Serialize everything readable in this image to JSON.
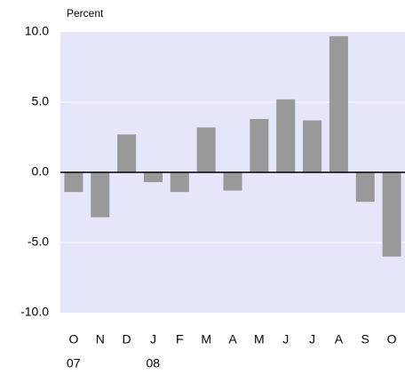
{
  "chart_data": {
    "type": "bar",
    "title": "Percent",
    "categories": [
      "O",
      "N",
      "D",
      "J",
      "F",
      "M",
      "A",
      "M",
      "J",
      "J",
      "A",
      "S",
      "O"
    ],
    "x_sublabels": [
      "07",
      null,
      null,
      "08",
      null,
      null,
      null,
      null,
      null,
      null,
      null,
      null,
      null
    ],
    "values": [
      -1.4,
      -3.2,
      2.7,
      -0.7,
      -1.4,
      3.2,
      -1.3,
      3.8,
      5.2,
      3.7,
      9.7,
      -2.1,
      -6.0
    ],
    "color": "#999999",
    "ylim": [
      -10,
      10
    ],
    "yticks": [
      {
        "value": -10,
        "label": "-10.0"
      },
      {
        "value": -5,
        "label": "-5.0"
      },
      {
        "value": 0,
        "label": "0.0"
      },
      {
        "value": 5,
        "label": "5.0"
      },
      {
        "value": 10,
        "label": "10.0"
      }
    ],
    "grid": true
  }
}
